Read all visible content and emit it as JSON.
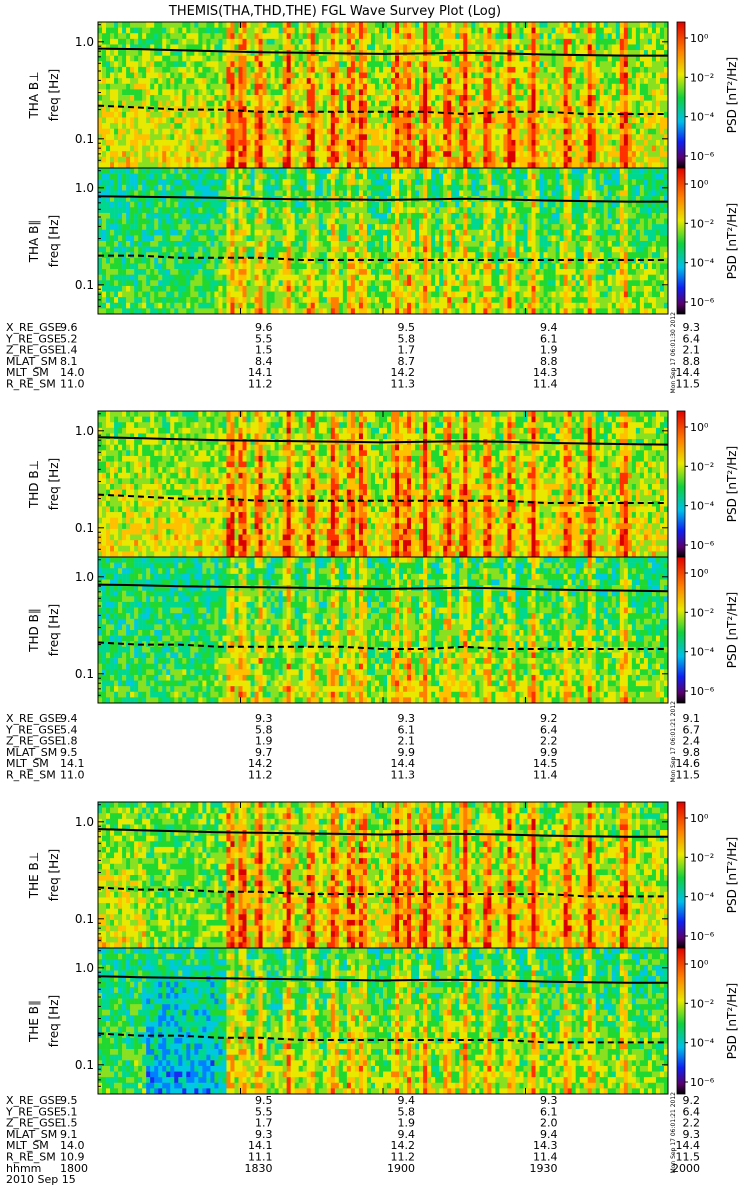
{
  "chart_data": {
    "type": "heatmap",
    "title": "THEMIS(THA,THD,THE) FGL Wave Survey Plot (Log)",
    "y_scale": "log",
    "ylim": [
      0.05,
      1.6
    ],
    "y_ticks": [
      "1.0",
      "0.1"
    ],
    "colorbar": {
      "label": "PSD [nT²/Hz]",
      "scale": "log",
      "ticks": [
        "10⁰",
        "10⁻²",
        "10⁻⁴",
        "10⁻⁶"
      ]
    },
    "x_axis": {
      "ticks": [
        "1800",
        "1830",
        "1900",
        "1930",
        "2000"
      ],
      "label": "hhmm",
      "date": "2010 Sep 15"
    },
    "probes": [
      {
        "probe": "THA",
        "panels": [
          {
            "ylabel_prefix": "THA B⊥",
            "ylabel": "freq [Hz]",
            "stamp": "",
            "solid_line_hz": [
              0.85,
              0.84,
              0.82,
              0.8,
              0.78,
              0.77,
              0.76,
              0.75,
              0.76,
              0.77,
              0.76,
              0.74,
              0.73,
              0.72,
              0.72
            ],
            "dashed_line_hz": [
              0.22,
              0.21,
              0.2,
              0.2,
              0.19,
              0.19,
              0.19,
              0.19,
              0.19,
              0.18,
              0.19,
              0.19,
              0.18,
              0.18,
              0.18
            ]
          },
          {
            "ylabel_prefix": "THA B∥",
            "ylabel": "freq [Hz]",
            "stamp": "Mon Sep 17 06:01:30 2012",
            "solid_line_hz": [
              0.82,
              0.81,
              0.8,
              0.79,
              0.77,
              0.76,
              0.76,
              0.75,
              0.76,
              0.77,
              0.76,
              0.74,
              0.73,
              0.72,
              0.72
            ],
            "dashed_line_hz": [
              0.2,
              0.2,
              0.19,
              0.19,
              0.19,
              0.18,
              0.18,
              0.18,
              0.18,
              0.18,
              0.18,
              0.18,
              0.18,
              0.18,
              0.18
            ]
          }
        ],
        "ephemeris": [
          {
            "label": "X_RE_GSE",
            "values": [
              "9.6",
              "9.6",
              "9.5",
              "9.4",
              "9.3"
            ]
          },
          {
            "label": "Y_RE_GSE",
            "values": [
              "5.2",
              "5.5",
              "5.8",
              "6.1",
              "6.4"
            ]
          },
          {
            "label": "Z_RE_GSE",
            "values": [
              "1.4",
              "1.5",
              "1.7",
              "1.9",
              "2.1"
            ]
          },
          {
            "label": "MLAT_SM",
            "values": [
              "8.1",
              "8.4",
              "8.7",
              "8.8",
              "8.8"
            ]
          },
          {
            "label": "MLT_SM",
            "values": [
              "14.0",
              "14.1",
              "14.2",
              "14.3",
              "14.4"
            ]
          },
          {
            "label": "R_RE_SM",
            "values": [
              "11.0",
              "11.2",
              "11.3",
              "11.4",
              "11.5"
            ]
          }
        ]
      },
      {
        "probe": "THD",
        "panels": [
          {
            "ylabel_prefix": "THD B⊥",
            "ylabel": "freq [Hz]",
            "stamp": "",
            "solid_line_hz": [
              0.86,
              0.84,
              0.82,
              0.8,
              0.79,
              0.78,
              0.77,
              0.76,
              0.77,
              0.78,
              0.77,
              0.75,
              0.74,
              0.73,
              0.72
            ],
            "dashed_line_hz": [
              0.22,
              0.21,
              0.2,
              0.2,
              0.19,
              0.19,
              0.19,
              0.19,
              0.19,
              0.19,
              0.19,
              0.18,
              0.18,
              0.18,
              0.18
            ]
          },
          {
            "ylabel_prefix": "THD B∥",
            "ylabel": "freq [Hz]",
            "stamp": "Mon Sep 17 06:01:21 2012",
            "solid_line_hz": [
              0.83,
              0.82,
              0.8,
              0.79,
              0.78,
              0.77,
              0.76,
              0.75,
              0.76,
              0.77,
              0.76,
              0.74,
              0.73,
              0.72,
              0.71
            ],
            "dashed_line_hz": [
              0.21,
              0.2,
              0.2,
              0.19,
              0.19,
              0.19,
              0.19,
              0.18,
              0.18,
              0.19,
              0.18,
              0.18,
              0.18,
              0.18,
              0.18
            ]
          }
        ],
        "ephemeris": [
          {
            "label": "X_RE_GSE",
            "values": [
              "9.4",
              "9.3",
              "9.3",
              "9.2",
              "9.1"
            ]
          },
          {
            "label": "Y_RE_GSE",
            "values": [
              "5.4",
              "5.8",
              "6.1",
              "6.4",
              "6.7"
            ]
          },
          {
            "label": "Z_RE_GSE",
            "values": [
              "1.8",
              "1.9",
              "2.1",
              "2.2",
              "2.4"
            ]
          },
          {
            "label": "MLAT_SM",
            "values": [
              "9.5",
              "9.7",
              "9.9",
              "9.9",
              "9.8"
            ]
          },
          {
            "label": "MLT_SM",
            "values": [
              "14.1",
              "14.2",
              "14.4",
              "14.5",
              "14.6"
            ]
          },
          {
            "label": "R_RE_SM",
            "values": [
              "11.0",
              "11.2",
              "11.3",
              "11.4",
              "11.5"
            ]
          }
        ]
      },
      {
        "probe": "THE",
        "panels": [
          {
            "ylabel_prefix": "THE B⊥",
            "ylabel": "freq [Hz]",
            "stamp": "",
            "solid_line_hz": [
              0.84,
              0.82,
              0.8,
              0.78,
              0.77,
              0.76,
              0.75,
              0.74,
              0.75,
              0.75,
              0.74,
              0.72,
              0.71,
              0.7,
              0.7
            ],
            "dashed_line_hz": [
              0.21,
              0.2,
              0.2,
              0.19,
              0.19,
              0.18,
              0.18,
              0.18,
              0.18,
              0.18,
              0.18,
              0.18,
              0.17,
              0.17,
              0.17
            ]
          },
          {
            "ylabel_prefix": "THE B∥",
            "ylabel": "freq [Hz]",
            "stamp": "Mon Sep 17 06:01:21 2012",
            "solid_line_hz": [
              0.82,
              0.8,
              0.79,
              0.78,
              0.77,
              0.76,
              0.75,
              0.74,
              0.75,
              0.75,
              0.74,
              0.72,
              0.71,
              0.7,
              0.7
            ],
            "dashed_line_hz": [
              0.21,
              0.2,
              0.2,
              0.19,
              0.19,
              0.18,
              0.18,
              0.18,
              0.18,
              0.18,
              0.18,
              0.17,
              0.17,
              0.17,
              0.17
            ]
          }
        ],
        "ephemeris": [
          {
            "label": "X_RE_GSE",
            "values": [
              "9.5",
              "9.5",
              "9.4",
              "9.3",
              "9.2"
            ]
          },
          {
            "label": "Y_RE_GSE",
            "values": [
              "5.1",
              "5.5",
              "5.8",
              "6.1",
              "6.4"
            ]
          },
          {
            "label": "Z_RE_GSE",
            "values": [
              "1.5",
              "1.7",
              "1.9",
              "2.0",
              "2.2"
            ]
          },
          {
            "label": "MLAT_SM",
            "values": [
              "9.1",
              "9.3",
              "9.4",
              "9.4",
              "9.3"
            ]
          },
          {
            "label": "MLT_SM",
            "values": [
              "14.0",
              "14.1",
              "14.2",
              "14.3",
              "14.4"
            ]
          },
          {
            "label": "R_RE_SM",
            "values": [
              "10.9",
              "11.1",
              "11.2",
              "11.4",
              "11.5"
            ]
          }
        ]
      }
    ]
  }
}
